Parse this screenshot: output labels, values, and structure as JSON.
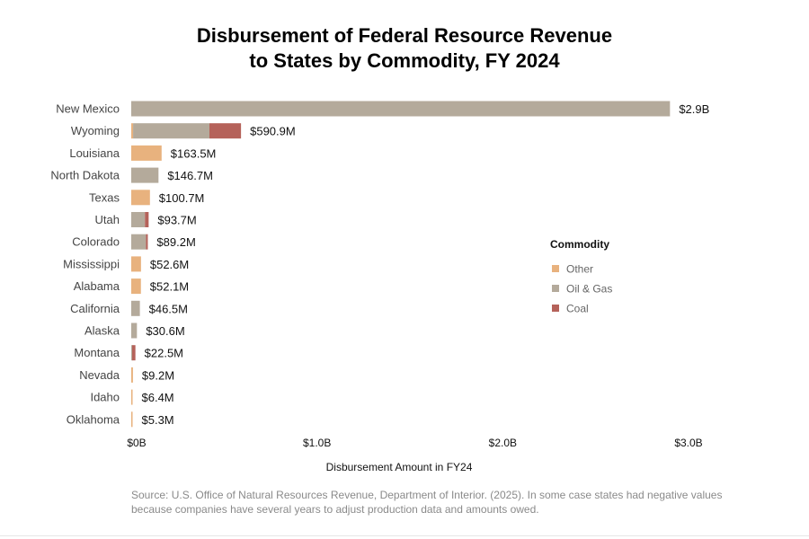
{
  "title_line1": "Disbursement of Federal Resource Revenue",
  "title_line2": "to States by Commodity, FY 2024",
  "source": "Source: U.S. Office of Natural Resources Revenue, Department of Interior. (2025). In some case states had negative values because companies have several years to adjust production data and amounts owed.",
  "chart_data": {
    "type": "bar",
    "orientation": "horizontal",
    "stacked": true,
    "categories": [
      "New Mexico",
      "Wyoming",
      "Louisiana",
      "North Dakota",
      "Texas",
      "Utah",
      "Colorado",
      "Mississippi",
      "Alabama",
      "California",
      "Alaska",
      "Montana",
      "Nevada",
      "Idaho",
      "Oklahoma"
    ],
    "totals": [
      2900000000,
      590900000,
      163500000,
      146700000,
      100700000,
      93700000,
      89200000,
      52600000,
      52100000,
      46500000,
      30600000,
      22500000,
      9200000,
      6400000,
      5300000
    ],
    "total_labels": [
      "$2.9B",
      "$590.9M",
      "$163.5M",
      "$146.7M",
      "$100.7M",
      "$93.7M",
      "$89.2M",
      "$52.6M",
      "$52.1M",
      "$46.5M",
      "$30.6M",
      "$22.5M",
      "$9.2M",
      "$6.4M",
      "$5.3M"
    ],
    "series": [
      {
        "name": "Other",
        "color": "#e8b27e",
        "values": [
          0,
          10000000,
          163500000,
          0,
          100700000,
          0,
          0,
          52600000,
          52100000,
          0,
          0,
          0,
          9200000,
          6400000,
          5300000
        ]
      },
      {
        "name": "Oil & Gas",
        "color": "#b4aa9b",
        "values": [
          2900000000,
          410900000,
          0,
          146700000,
          0,
          73700000,
          79200000,
          0,
          0,
          46500000,
          30600000,
          5000000,
          0,
          0,
          0
        ]
      },
      {
        "name": "Coal",
        "color": "#b5625a",
        "values": [
          0,
          170000000,
          0,
          0,
          0,
          20000000,
          10000000,
          0,
          0,
          0,
          0,
          17500000,
          0,
          0,
          0
        ]
      }
    ],
    "xlim": [
      0,
      3000000000
    ],
    "xticks": [
      0,
      1000000000,
      2000000000,
      3000000000
    ],
    "xtick_labels": [
      "$0B",
      "$1.0B",
      "$2.0B",
      "$3.0B"
    ],
    "xlabel": "Disbursement Amount in FY24",
    "legend_title": "Commodity",
    "legend_position": "right",
    "grid": false
  }
}
